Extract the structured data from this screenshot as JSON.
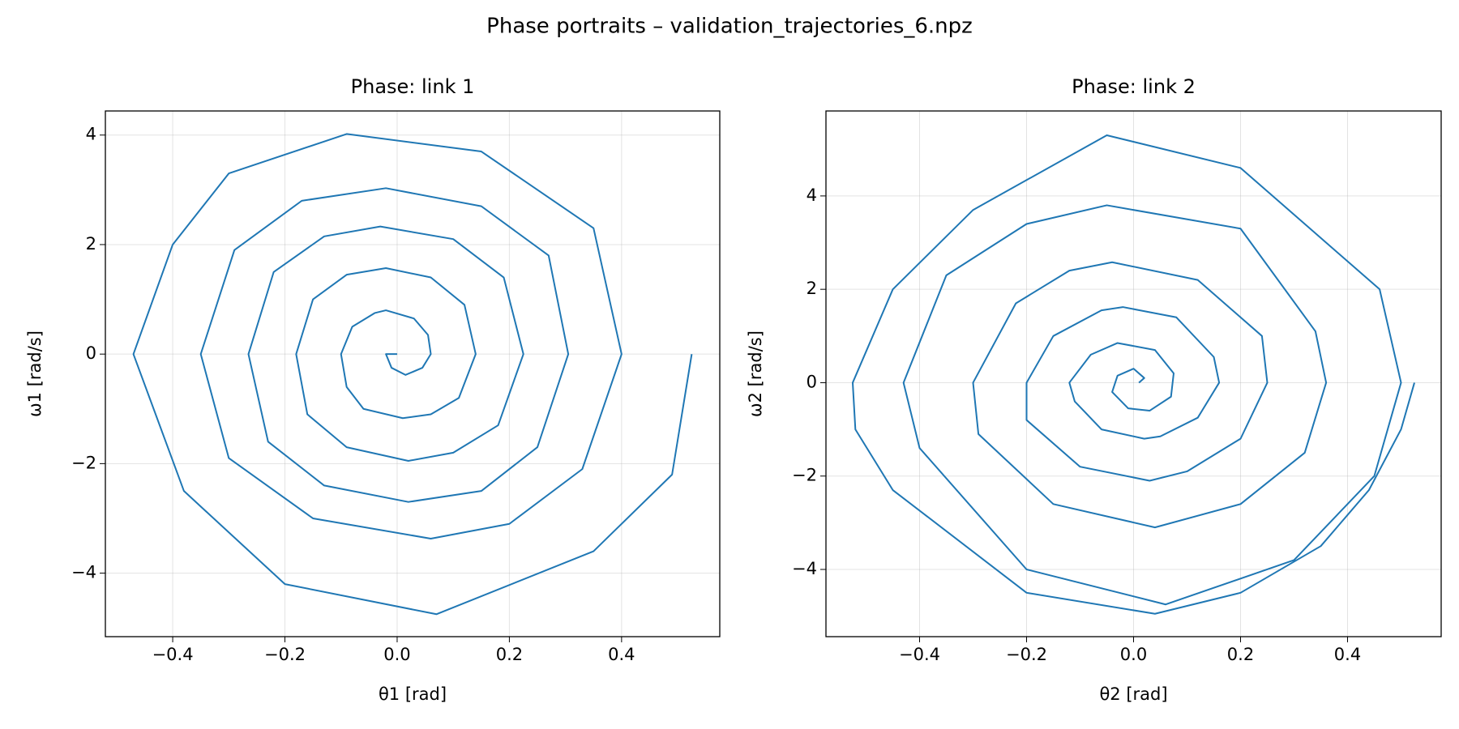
{
  "title": "Phase portraits – validation_trajectories_6.npz",
  "chart_data": [
    {
      "type": "line",
      "title": "Phase: link 1",
      "x_label": "θ1 [rad]",
      "y_label": "ω1 [rad/s]",
      "color": "#1f77b4",
      "grid": true,
      "xlim": [
        -0.52,
        0.575
      ],
      "ylim": [
        -5.16,
        4.44
      ],
      "xticks": [
        {
          "value": -0.4,
          "label": "−0.4"
        },
        {
          "value": -0.2,
          "label": "−0.2"
        },
        {
          "value": 0,
          "label": "0.0"
        },
        0.2,
        0.4
      ],
      "yticks": [
        {
          "value": -4,
          "label": "−4"
        },
        {
          "value": -2,
          "label": "−2"
        },
        0,
        2,
        4
      ],
      "x": [
        0.525,
        0.49,
        0.35,
        0.07,
        -0.2,
        -0.38,
        -0.47,
        -0.4,
        -0.3,
        -0.09,
        0.15,
        0.35,
        0.4,
        0.33,
        0.2,
        0.06,
        -0.15,
        -0.3,
        -0.35,
        -0.29,
        -0.17,
        -0.02,
        0.15,
        0.27,
        0.305,
        0.25,
        0.15,
        0.02,
        -0.13,
        -0.23,
        -0.265,
        -0.22,
        -0.13,
        -0.03,
        0.1,
        0.19,
        0.225,
        0.18,
        0.1,
        0.02,
        -0.09,
        -0.16,
        -0.18,
        -0.15,
        -0.09,
        -0.02,
        0.06,
        0.12,
        0.14,
        0.11,
        0.06,
        0.01,
        -0.06,
        -0.09,
        -0.1,
        -0.08,
        -0.04,
        -0.02,
        0.03,
        0.055,
        0.06,
        0.045,
        0.015,
        -0.01,
        -0.02,
        0
      ],
      "values": [
        0,
        -2.2,
        -3.6,
        -4.75,
        -4.2,
        -2.5,
        0,
        2.0,
        3.3,
        4.02,
        3.7,
        2.3,
        0,
        -2.1,
        -3.1,
        -3.37,
        -3.0,
        -1.9,
        0,
        1.9,
        2.8,
        3.03,
        2.7,
        1.8,
        0,
        -1.7,
        -2.5,
        -2.7,
        -2.4,
        -1.6,
        0,
        1.5,
        2.15,
        2.33,
        2.1,
        1.4,
        0,
        -1.3,
        -1.8,
        -1.95,
        -1.7,
        -1.1,
        0,
        1.0,
        1.45,
        1.57,
        1.4,
        0.9,
        0,
        -0.8,
        -1.1,
        -1.17,
        -1.0,
        -0.6,
        0,
        0.5,
        0.75,
        0.8,
        0.65,
        0.35,
        0,
        -0.25,
        -0.38,
        -0.25,
        0,
        0
      ]
    },
    {
      "type": "line",
      "title": "Phase: link 2",
      "x_label": "θ2 [rad]",
      "y_label": "ω2 [rad/s]",
      "color": "#1f77b4",
      "grid": true,
      "xlim": [
        -0.575,
        0.575
      ],
      "ylim": [
        -5.44,
        5.82
      ],
      "xticks": [
        {
          "value": -0.4,
          "label": "−0.4"
        },
        {
          "value": -0.2,
          "label": "−0.2"
        },
        {
          "value": 0,
          "label": "0.0"
        },
        0.2,
        0.4
      ],
      "yticks": [
        {
          "value": -4,
          "label": "−4"
        },
        {
          "value": -2,
          "label": "−2"
        },
        0,
        2,
        4
      ],
      "x": [
        0.525,
        0.5,
        0.44,
        0.35,
        0.2,
        0.04,
        -0.2,
        -0.45,
        -0.52,
        -0.525,
        -0.45,
        -0.3,
        -0.05,
        0.2,
        0.46,
        0.5,
        0.45,
        0.3,
        0.06,
        -0.2,
        -0.4,
        -0.43,
        -0.35,
        -0.2,
        -0.05,
        0.2,
        0.34,
        0.36,
        0.32,
        0.2,
        0.04,
        -0.15,
        -0.29,
        -0.3,
        -0.22,
        -0.12,
        -0.04,
        0.12,
        0.24,
        0.25,
        0.2,
        0.1,
        0.03,
        -0.1,
        -0.2,
        -0.2,
        -0.15,
        -0.06,
        -0.02,
        0.08,
        0.15,
        0.16,
        0.12,
        0.05,
        0.02,
        -0.06,
        -0.11,
        -0.12,
        -0.08,
        -0.03,
        0.04,
        0.075,
        0.07,
        0.03,
        -0.01,
        -0.04,
        -0.03,
        0,
        0.02,
        0.01
      ],
      "values": [
        0,
        -1.0,
        -2.3,
        -3.5,
        -4.5,
        -4.95,
        -4.5,
        -2.3,
        -1.0,
        0,
        2.0,
        3.7,
        5.3,
        4.6,
        2.0,
        0,
        -2.0,
        -3.8,
        -4.75,
        -4.0,
        -1.4,
        0,
        2.3,
        3.4,
        3.8,
        3.3,
        1.1,
        0,
        -1.5,
        -2.6,
        -3.1,
        -2.6,
        -1.1,
        0,
        1.7,
        2.4,
        2.58,
        2.2,
        1.0,
        0,
        -1.2,
        -1.9,
        -2.1,
        -1.8,
        -0.8,
        0,
        1.0,
        1.55,
        1.62,
        1.4,
        0.55,
        0,
        -0.75,
        -1.15,
        -1.2,
        -1.0,
        -0.4,
        0,
        0.6,
        0.85,
        0.7,
        0.2,
        -0.3,
        -0.6,
        -0.55,
        -0.2,
        0.15,
        0.3,
        0.1,
        0
      ]
    }
  ]
}
